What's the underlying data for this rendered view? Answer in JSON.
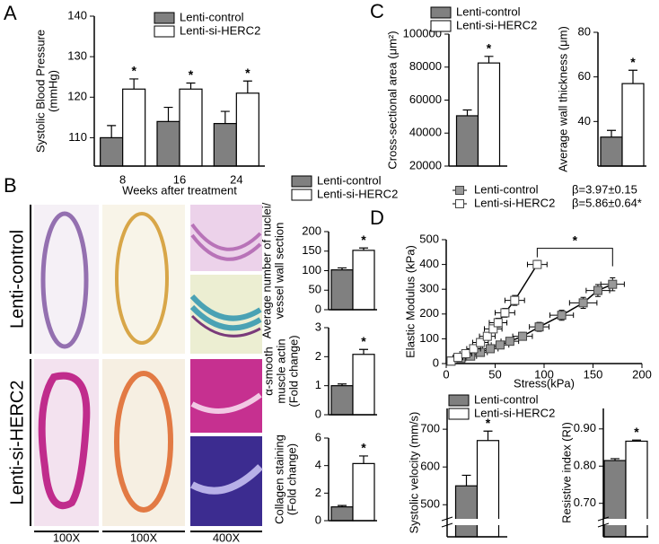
{
  "figure": {
    "panel_labels": [
      "A",
      "B",
      "C",
      "D"
    ],
    "row_labels": [
      "Lenti-control",
      "Lenti-si-HERC2"
    ],
    "magnifications": [
      "100X",
      "100X",
      "400X"
    ]
  },
  "chart_data": [
    {
      "type": "bar",
      "ylabel": [
        "Systolic Blood Pressure",
        "(mmHg)"
      ],
      "xlabel": "Weeks after treatment",
      "categories": [
        "8",
        "16",
        "24"
      ],
      "series": [
        {
          "name": "Lenti-control",
          "color": "#808080",
          "values": [
            110,
            114,
            113.5
          ],
          "errors": [
            3,
            3.5,
            3
          ]
        },
        {
          "name": "Lenti-si-HERC2",
          "color": "#ffffff",
          "values": [
            122,
            122,
            121
          ],
          "errors": [
            2.5,
            1.5,
            3
          ]
        }
      ],
      "annotations": [
        "*",
        "*",
        "*"
      ],
      "ylim": [
        103,
        140
      ],
      "yticks": [
        110,
        120,
        130,
        140
      ]
    },
    {
      "type": "bar",
      "ylabel": [
        "Cross-sectional area (μm²)"
      ],
      "series": [
        {
          "name": "Lenti-control",
          "color": "#808080",
          "values": [
            50500
          ],
          "errors": [
            3500
          ]
        },
        {
          "name": "Lenti-si-HERC2",
          "color": "#ffffff",
          "values": [
            82500
          ],
          "errors": [
            4000
          ]
        }
      ],
      "annotations": [
        "*"
      ],
      "ylim": [
        20000,
        100000
      ],
      "yticks": [
        20000,
        40000,
        60000,
        80000,
        100000
      ]
    },
    {
      "type": "bar",
      "ylabel": [
        "Average wall thickness (μm)"
      ],
      "series": [
        {
          "color": "#808080",
          "values": [
            33
          ],
          "errors": [
            3
          ]
        },
        {
          "color": "#ffffff",
          "values": [
            57
          ],
          "errors": [
            6
          ]
        }
      ],
      "annotations": [
        "*"
      ],
      "ylim": [
        20,
        80
      ],
      "yticks": [
        40,
        60,
        80
      ]
    },
    {
      "type": "bar",
      "ylabel": [
        "Average number of nuclei/",
        "vessel wall section"
      ],
      "series": [
        {
          "name": "Lenti-control",
          "color": "#808080",
          "values": [
            102
          ],
          "errors": [
            5
          ]
        },
        {
          "name": "Lenti-si-HERC2",
          "color": "#ffffff",
          "values": [
            152
          ],
          "errors": [
            6
          ]
        }
      ],
      "annotations": [
        "*"
      ],
      "ylim": [
        0,
        200
      ],
      "yticks": [
        0,
        50,
        100,
        150,
        200
      ]
    },
    {
      "type": "bar",
      "ylabel": [
        "α-smooth",
        "muscle actin",
        "(Fold change)"
      ],
      "series": [
        {
          "color": "#808080",
          "values": [
            1.0
          ],
          "errors": [
            0.06
          ]
        },
        {
          "color": "#ffffff",
          "values": [
            2.08
          ],
          "errors": [
            0.17
          ]
        }
      ],
      "annotations": [
        "*"
      ],
      "ylim": [
        0,
        3
      ],
      "yticks": [
        0,
        1,
        2,
        3
      ]
    },
    {
      "type": "bar",
      "ylabel": [
        "Collagen staining",
        "(Fold change)"
      ],
      "series": [
        {
          "color": "#808080",
          "values": [
            1.0
          ],
          "errors": [
            0.1
          ]
        },
        {
          "color": "#ffffff",
          "values": [
            4.15
          ],
          "errors": [
            0.55
          ]
        }
      ],
      "annotations": [
        "*"
      ],
      "ylim": [
        0,
        6
      ],
      "yticks": [
        0,
        2,
        4,
        6
      ]
    },
    {
      "type": "scatter",
      "ylabel": [
        "Elastic Modulus  (kPa)"
      ],
      "xlabel": "Stress(kPa)",
      "series": [
        {
          "name": "Lenti-control",
          "color": "#999999",
          "x": [
            5,
            15,
            25,
            35,
            45,
            55,
            65,
            78,
            95,
            118,
            140,
            155,
            170
          ],
          "values": [
            10,
            20,
            30,
            45,
            60,
            75,
            90,
            110,
            148,
            195,
            245,
            295,
            320
          ],
          "xerr": [
            4,
            5,
            6,
            7,
            8,
            9,
            9,
            10,
            10,
            12,
            14,
            12,
            12
          ],
          "yerr": [
            5,
            6,
            8,
            10,
            10,
            12,
            14,
            16,
            18,
            20,
            22,
            24,
            26
          ]
        },
        {
          "name": "Lenti-si-HERC2",
          "color": "#ffffff",
          "x": [
            5,
            12,
            20,
            28,
            35,
            42,
            48,
            53,
            60,
            70,
            93
          ],
          "values": [
            10,
            25,
            40,
            60,
            85,
            110,
            140,
            165,
            205,
            255,
            400
          ],
          "xerr": [
            4,
            5,
            6,
            7,
            8,
            8,
            9,
            9,
            10,
            10,
            10
          ],
          "yerr": [
            5,
            6,
            8,
            10,
            12,
            14,
            16,
            18,
            18,
            20,
            16
          ]
        }
      ],
      "annotations": [
        "β=3.97±0.15",
        "β=5.86±0.64*"
      ],
      "significance": "*",
      "xlim": [
        0,
        200
      ],
      "xticks": [
        0,
        50,
        100,
        150,
        200
      ],
      "ylim": [
        0,
        500
      ],
      "yticks": [
        0,
        100,
        200,
        300,
        400,
        500
      ]
    },
    {
      "type": "bar",
      "ylabel": [
        "Systolic velocity (mm/s)"
      ],
      "axis_break": true,
      "series": [
        {
          "name": "Lenti-control",
          "color": "#808080",
          "values": [
            550
          ],
          "errors": [
            28
          ]
        },
        {
          "name": "Lenti-si-HERC2",
          "color": "#ffffff",
          "values": [
            670
          ],
          "errors": [
            25
          ]
        }
      ],
      "annotations": [
        "*"
      ],
      "ylim": [
        415,
        755
      ],
      "yticks": [
        500,
        600,
        700
      ]
    },
    {
      "type": "bar",
      "ylabel": [
        "Resistive index (RI)"
      ],
      "axis_break": true,
      "series": [
        {
          "color": "#808080",
          "values": [
            0.815
          ],
          "errors": [
            0.005
          ]
        },
        {
          "color": "#ffffff",
          "values": [
            0.867
          ],
          "errors": [
            0.003
          ]
        }
      ],
      "annotations": [
        "*"
      ],
      "ylim": [
        0.61,
        0.955
      ],
      "yticks": [
        {
          "value": 0.7,
          "label": "0.70"
        },
        {
          "value": 0.8,
          "label": "0.80"
        },
        {
          "value": 0.9,
          "label": "0.90"
        }
      ]
    }
  ]
}
